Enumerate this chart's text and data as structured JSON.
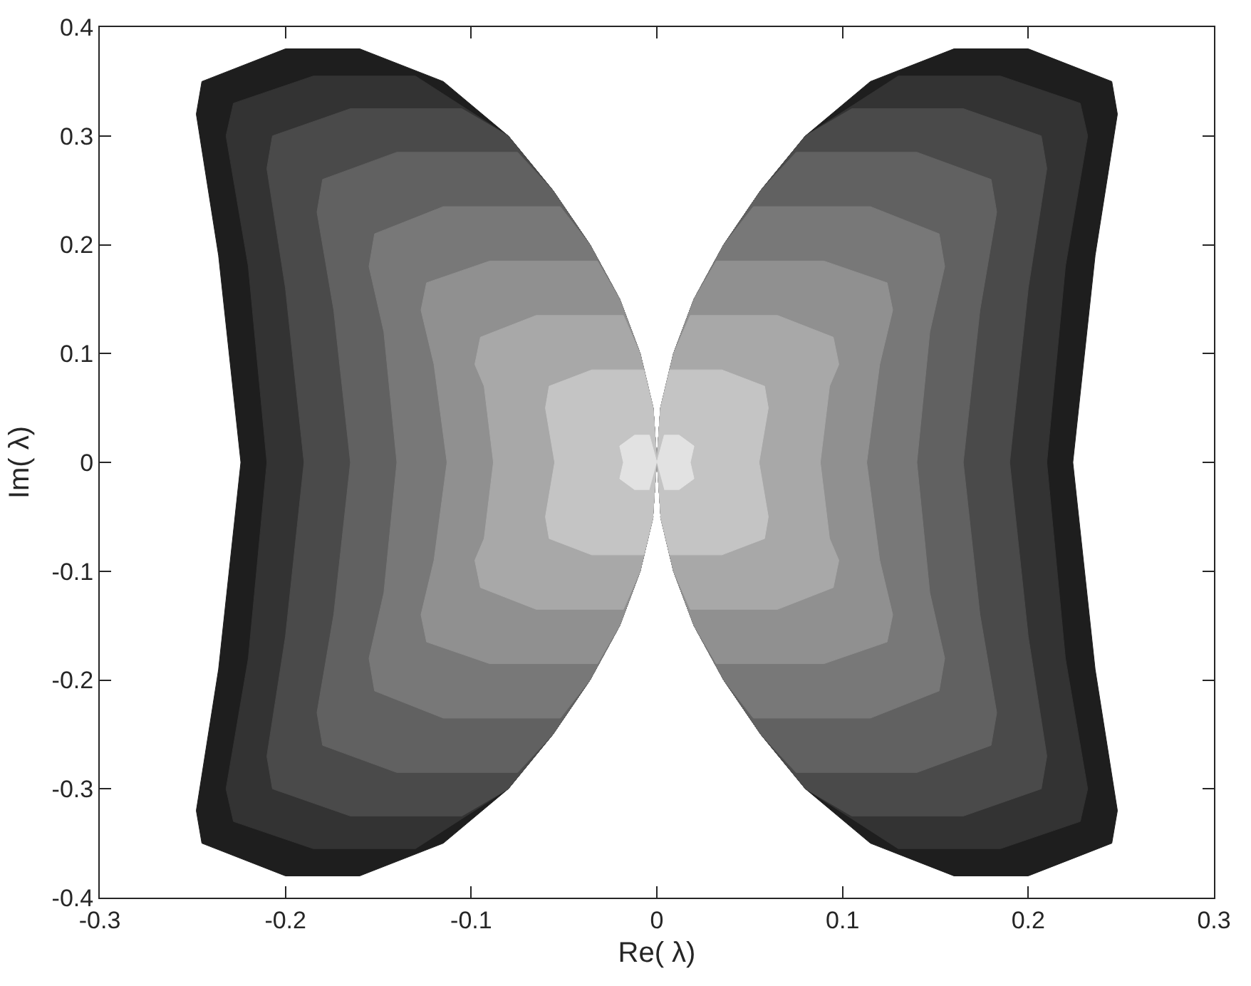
{
  "chart_data": {
    "type": "area",
    "xlabel": "Re( λ)",
    "ylabel": "Im( λ)",
    "xlim": [
      -0.3,
      0.3
    ],
    "xticks": [
      -0.3,
      -0.2,
      -0.1,
      0,
      0.1,
      0.2,
      0.3
    ],
    "ylim": [
      -0.4,
      0.4
    ],
    "yticks": [
      -0.4,
      -0.3,
      -0.2,
      -0.1,
      0,
      0.1,
      0.2,
      0.3,
      0.4
    ],
    "grid": false,
    "series": [
      {
        "color": "#1e1e1e",
        "x": [
          0,
          0.002,
          0.009,
          0.02,
          0.036,
          0.056,
          0.08,
          0.115,
          0.16,
          0.2,
          0.245,
          0.248,
          0.236,
          0.224,
          0.236,
          0.248,
          0.245,
          0.2,
          0.16,
          0.115,
          0.08,
          0.056,
          0.036,
          0.02,
          0.009,
          0.002,
          null,
          0,
          -0.002,
          -0.009,
          -0.02,
          -0.036,
          -0.056,
          -0.08,
          -0.115,
          -0.16,
          -0.2,
          -0.245,
          -0.248,
          -0.236,
          -0.224,
          -0.236,
          -0.248,
          -0.245,
          -0.2,
          -0.16,
          -0.115,
          -0.08,
          -0.056,
          -0.036,
          -0.02,
          -0.009,
          -0.002
        ],
        "values": [
          0,
          0.05,
          0.1,
          0.15,
          0.2,
          0.25,
          0.3,
          0.35,
          0.38,
          0.38,
          0.35,
          0.32,
          0.19,
          0,
          -0.19,
          -0.32,
          -0.35,
          -0.38,
          -0.38,
          -0.35,
          -0.3,
          -0.25,
          -0.2,
          -0.15,
          -0.1,
          -0.05,
          null,
          0,
          0.05,
          0.1,
          0.15,
          0.2,
          0.25,
          0.3,
          0.35,
          0.38,
          0.38,
          0.35,
          0.32,
          0.19,
          0,
          -0.19,
          -0.32,
          -0.35,
          -0.38,
          -0.38,
          -0.35,
          -0.3,
          -0.25,
          -0.2,
          -0.15,
          -0.1,
          -0.05
        ]
      },
      {
        "color": "#333333",
        "x": [
          0,
          0.002,
          0.009,
          0.02,
          0.036,
          0.056,
          0.08,
          0.13,
          0.185,
          0.228,
          0.232,
          0.22,
          0.21,
          0.22,
          0.232,
          0.228,
          0.185,
          0.13,
          0.08,
          0.056,
          0.036,
          0.02,
          0.009,
          0.002,
          null,
          0,
          -0.002,
          -0.009,
          -0.02,
          -0.036,
          -0.056,
          -0.08,
          -0.13,
          -0.185,
          -0.228,
          -0.232,
          -0.22,
          -0.21,
          -0.22,
          -0.232,
          -0.228,
          -0.185,
          -0.13,
          -0.08,
          -0.056,
          -0.036,
          -0.02,
          -0.009,
          -0.002
        ],
        "values": [
          0,
          0.05,
          0.1,
          0.15,
          0.2,
          0.25,
          0.3,
          0.355,
          0.355,
          0.33,
          0.3,
          0.18,
          0,
          -0.18,
          -0.3,
          -0.33,
          -0.355,
          -0.355,
          -0.3,
          -0.25,
          -0.2,
          -0.15,
          -0.1,
          -0.05,
          null,
          0,
          0.05,
          0.1,
          0.15,
          0.2,
          0.25,
          0.3,
          0.355,
          0.355,
          0.33,
          0.3,
          0.18,
          0,
          -0.18,
          -0.3,
          -0.33,
          -0.355,
          -0.355,
          -0.3,
          -0.25,
          -0.2,
          -0.15,
          -0.1,
          -0.05
        ]
      },
      {
        "color": "#4a4a4a",
        "x": [
          0,
          0.002,
          0.009,
          0.02,
          0.036,
          0.056,
          0.08,
          0.105,
          0.165,
          0.207,
          0.21,
          0.2,
          0.19,
          0.2,
          0.21,
          0.207,
          0.165,
          0.105,
          0.08,
          0.056,
          0.036,
          0.02,
          0.009,
          0.002,
          null,
          0,
          -0.002,
          -0.009,
          -0.02,
          -0.036,
          -0.056,
          -0.08,
          -0.105,
          -0.165,
          -0.207,
          -0.21,
          -0.2,
          -0.19,
          -0.2,
          -0.21,
          -0.207,
          -0.165,
          -0.105,
          -0.08,
          -0.056,
          -0.036,
          -0.02,
          -0.009,
          -0.002
        ],
        "values": [
          0,
          0.05,
          0.1,
          0.15,
          0.2,
          0.25,
          0.3,
          0.325,
          0.325,
          0.3,
          0.27,
          0.16,
          0,
          -0.16,
          -0.27,
          -0.3,
          -0.325,
          -0.325,
          -0.3,
          -0.25,
          -0.2,
          -0.15,
          -0.1,
          -0.05,
          null,
          0,
          0.05,
          0.1,
          0.15,
          0.2,
          0.25,
          0.3,
          0.325,
          0.325,
          0.3,
          0.27,
          0.16,
          0,
          -0.16,
          -0.27,
          -0.3,
          -0.325,
          -0.325,
          -0.3,
          -0.25,
          -0.2,
          -0.15,
          -0.1,
          -0.05
        ]
      },
      {
        "color": "#616161",
        "x": [
          0,
          0.002,
          0.009,
          0.02,
          0.036,
          0.056,
          0.075,
          0.14,
          0.18,
          0.183,
          0.174,
          0.165,
          0.174,
          0.183,
          0.18,
          0.14,
          0.075,
          0.056,
          0.036,
          0.02,
          0.009,
          0.002,
          null,
          0,
          -0.002,
          -0.009,
          -0.02,
          -0.036,
          -0.056,
          -0.075,
          -0.14,
          -0.18,
          -0.183,
          -0.174,
          -0.165,
          -0.174,
          -0.183,
          -0.18,
          -0.14,
          -0.075,
          -0.056,
          -0.036,
          -0.02,
          -0.009,
          -0.002
        ],
        "values": [
          0,
          0.05,
          0.1,
          0.15,
          0.2,
          0.25,
          0.285,
          0.285,
          0.26,
          0.23,
          0.14,
          0,
          -0.14,
          -0.23,
          -0.26,
          -0.285,
          -0.285,
          -0.25,
          -0.2,
          -0.15,
          -0.1,
          -0.05,
          null,
          0,
          0.05,
          0.1,
          0.15,
          0.2,
          0.25,
          0.285,
          0.285,
          0.26,
          0.23,
          0.14,
          0,
          -0.14,
          -0.23,
          -0.26,
          -0.285,
          -0.285,
          -0.25,
          -0.2,
          -0.15,
          -0.1,
          -0.05
        ]
      },
      {
        "color": "#787878",
        "x": [
          0,
          0.002,
          0.009,
          0.02,
          0.036,
          0.052,
          0.115,
          0.152,
          0.155,
          0.147,
          0.14,
          0.147,
          0.155,
          0.152,
          0.115,
          0.052,
          0.036,
          0.02,
          0.009,
          0.002,
          null,
          0,
          -0.002,
          -0.009,
          -0.02,
          -0.036,
          -0.052,
          -0.115,
          -0.152,
          -0.155,
          -0.147,
          -0.14,
          -0.147,
          -0.155,
          -0.152,
          -0.115,
          -0.052,
          -0.036,
          -0.02,
          -0.009,
          -0.002
        ],
        "values": [
          0,
          0.05,
          0.1,
          0.15,
          0.2,
          0.235,
          0.235,
          0.21,
          0.18,
          0.12,
          0,
          -0.12,
          -0.18,
          -0.21,
          -0.235,
          -0.235,
          -0.2,
          -0.15,
          -0.1,
          -0.05,
          null,
          0,
          0.05,
          0.1,
          0.15,
          0.2,
          0.235,
          0.235,
          0.21,
          0.18,
          0.12,
          0,
          -0.12,
          -0.18,
          -0.21,
          -0.235,
          -0.235,
          -0.2,
          -0.15,
          -0.1,
          -0.05
        ]
      },
      {
        "color": "#909090",
        "x": [
          0,
          0.002,
          0.009,
          0.02,
          0.032,
          0.09,
          0.124,
          0.127,
          0.12,
          0.113,
          0.12,
          0.127,
          0.124,
          0.09,
          0.032,
          0.02,
          0.009,
          0.002,
          null,
          0,
          -0.002,
          -0.009,
          -0.02,
          -0.032,
          -0.09,
          -0.124,
          -0.127,
          -0.12,
          -0.113,
          -0.12,
          -0.127,
          -0.124,
          -0.09,
          -0.032,
          -0.02,
          -0.009,
          -0.002
        ],
        "values": [
          0,
          0.05,
          0.1,
          0.15,
          0.185,
          0.185,
          0.165,
          0.14,
          0.09,
          0,
          -0.09,
          -0.14,
          -0.165,
          -0.185,
          -0.185,
          -0.15,
          -0.1,
          -0.05,
          null,
          0,
          0.05,
          0.1,
          0.15,
          0.185,
          0.185,
          0.165,
          0.14,
          0.09,
          0,
          -0.09,
          -0.14,
          -0.165,
          -0.185,
          -0.185,
          -0.15,
          -0.1,
          -0.05
        ]
      },
      {
        "color": "#a8a8a8",
        "x": [
          0,
          0.002,
          0.009,
          0.018,
          0.065,
          0.095,
          0.098,
          0.093,
          0.088,
          0.093,
          0.098,
          0.095,
          0.065,
          0.018,
          0.009,
          0.002,
          null,
          0,
          -0.002,
          -0.009,
          -0.018,
          -0.065,
          -0.095,
          -0.098,
          -0.093,
          -0.088,
          -0.093,
          -0.098,
          -0.095,
          -0.065,
          -0.018,
          -0.009,
          -0.002
        ],
        "values": [
          0,
          0.05,
          0.1,
          0.135,
          0.135,
          0.115,
          0.09,
          0.07,
          0,
          -0.07,
          -0.09,
          -0.115,
          -0.135,
          -0.135,
          -0.1,
          -0.05,
          null,
          0,
          0.05,
          0.1,
          0.135,
          0.135,
          0.115,
          0.09,
          0.07,
          0,
          -0.07,
          -0.09,
          -0.115,
          -0.135,
          -0.135,
          -0.1,
          -0.05
        ]
      },
      {
        "color": "#c4c4c4",
        "x": [
          0,
          0.002,
          0.007,
          0.035,
          0.058,
          0.06,
          0.055,
          0.06,
          0.058,
          0.035,
          0.007,
          0.002,
          null,
          0,
          -0.002,
          -0.007,
          -0.035,
          -0.058,
          -0.06,
          -0.055,
          -0.06,
          -0.058,
          -0.035,
          -0.007,
          -0.002
        ],
        "values": [
          0,
          0.05,
          0.085,
          0.085,
          0.07,
          0.05,
          0,
          -0.05,
          -0.07,
          -0.085,
          -0.085,
          -0.05,
          null,
          0,
          0.05,
          0.085,
          0.085,
          0.07,
          0.05,
          0,
          -0.05,
          -0.07,
          -0.085,
          -0.085,
          -0.05
        ]
      },
      {
        "color": "#e2e2e2",
        "x": [
          0,
          0.004,
          0.012,
          0.02,
          0.018,
          0.02,
          0.012,
          0.004,
          null,
          0,
          -0.004,
          -0.012,
          -0.02,
          -0.018,
          -0.02,
          -0.012,
          -0.004
        ],
        "values": [
          0,
          0.025,
          0.025,
          0.015,
          0,
          -0.015,
          -0.025,
          -0.025,
          null,
          0,
          0.025,
          0.025,
          0.015,
          0,
          -0.015,
          -0.025,
          -0.025
        ]
      }
    ]
  }
}
